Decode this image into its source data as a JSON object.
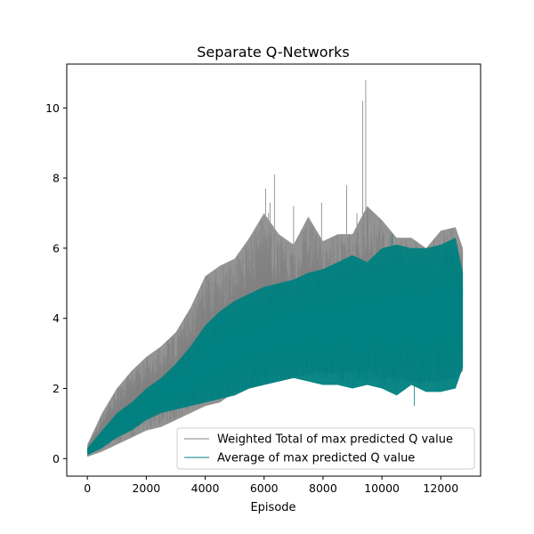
{
  "chart_data": {
    "type": "line",
    "title": "Separate Q-Networks",
    "xlabel": "Episode",
    "ylabel": "",
    "xlim": [
      -700,
      13350
    ],
    "ylim": [
      -0.5,
      11.25
    ],
    "xticks": [
      0,
      2000,
      4000,
      6000,
      8000,
      10000,
      12000
    ],
    "yticks": [
      0,
      2,
      4,
      6,
      8,
      10
    ],
    "grid": false,
    "legend_position": "lower-right",
    "n_episodes": 12750,
    "series": [
      {
        "name": "Weighted Total of max predicted Q value",
        "color": "#808080",
        "envelope": {
          "x": [
            0,
            500,
            1000,
            1500,
            2000,
            2500,
            3000,
            3500,
            4000,
            4500,
            5000,
            5500,
            6000,
            6500,
            7000,
            7500,
            8000,
            8500,
            9000,
            9500,
            10000,
            10500,
            11000,
            11500,
            12000,
            12500,
            12750
          ],
          "max": [
            0.4,
            1.3,
            2.0,
            2.5,
            2.9,
            3.2,
            3.6,
            4.3,
            5.2,
            5.5,
            5.7,
            6.3,
            7.0,
            6.4,
            6.1,
            6.9,
            6.2,
            6.4,
            6.4,
            7.2,
            6.8,
            6.3,
            6.3,
            6.0,
            6.5,
            6.6,
            6.0
          ],
          "min": [
            0.05,
            0.2,
            0.4,
            0.6,
            0.8,
            0.9,
            1.1,
            1.3,
            1.5,
            1.6,
            1.9,
            2.0,
            2.1,
            2.2,
            2.3,
            2.4,
            2.5,
            2.4,
            2.5,
            2.5,
            2.3,
            2.3,
            2.2,
            2.2,
            2.2,
            2.3,
            2.5
          ]
        },
        "spikes": [
          {
            "x": 6050,
            "y": 7.7
          },
          {
            "x": 6150,
            "y": 7.0
          },
          {
            "x": 6200,
            "y": 7.3
          },
          {
            "x": 6350,
            "y": 8.1
          },
          {
            "x": 7000,
            "y": 7.2
          },
          {
            "x": 7950,
            "y": 7.3
          },
          {
            "x": 8800,
            "y": 7.8
          },
          {
            "x": 9350,
            "y": 10.2
          },
          {
            "x": 9450,
            "y": 10.8
          },
          {
            "x": 9150,
            "y": 7.0
          }
        ]
      },
      {
        "name": "Average of max predicted Q value",
        "color": "#008080",
        "envelope": {
          "x": [
            0,
            500,
            1000,
            1500,
            2000,
            2500,
            3000,
            3500,
            4000,
            4500,
            5000,
            5500,
            6000,
            6500,
            7000,
            7500,
            8000,
            8500,
            9000,
            9500,
            10000,
            10500,
            11000,
            11500,
            12000,
            12500,
            12750
          ],
          "max": [
            0.3,
            0.8,
            1.3,
            1.6,
            2.0,
            2.3,
            2.7,
            3.2,
            3.8,
            4.2,
            4.5,
            4.7,
            4.9,
            5.0,
            5.1,
            5.3,
            5.4,
            5.6,
            5.8,
            5.6,
            6.0,
            6.1,
            6.0,
            6.0,
            6.1,
            6.3,
            5.3
          ],
          "min": [
            0.1,
            0.3,
            0.6,
            0.8,
            1.1,
            1.3,
            1.4,
            1.5,
            1.6,
            1.7,
            1.8,
            2.0,
            2.1,
            2.2,
            2.3,
            2.2,
            2.1,
            2.1,
            2.0,
            2.1,
            2.0,
            1.8,
            2.1,
            1.9,
            1.9,
            2.0,
            2.6
          ]
        },
        "spikes": [
          {
            "x": 10350,
            "y": 6.4
          },
          {
            "x": 11100,
            "y": 1.5
          }
        ]
      }
    ]
  }
}
